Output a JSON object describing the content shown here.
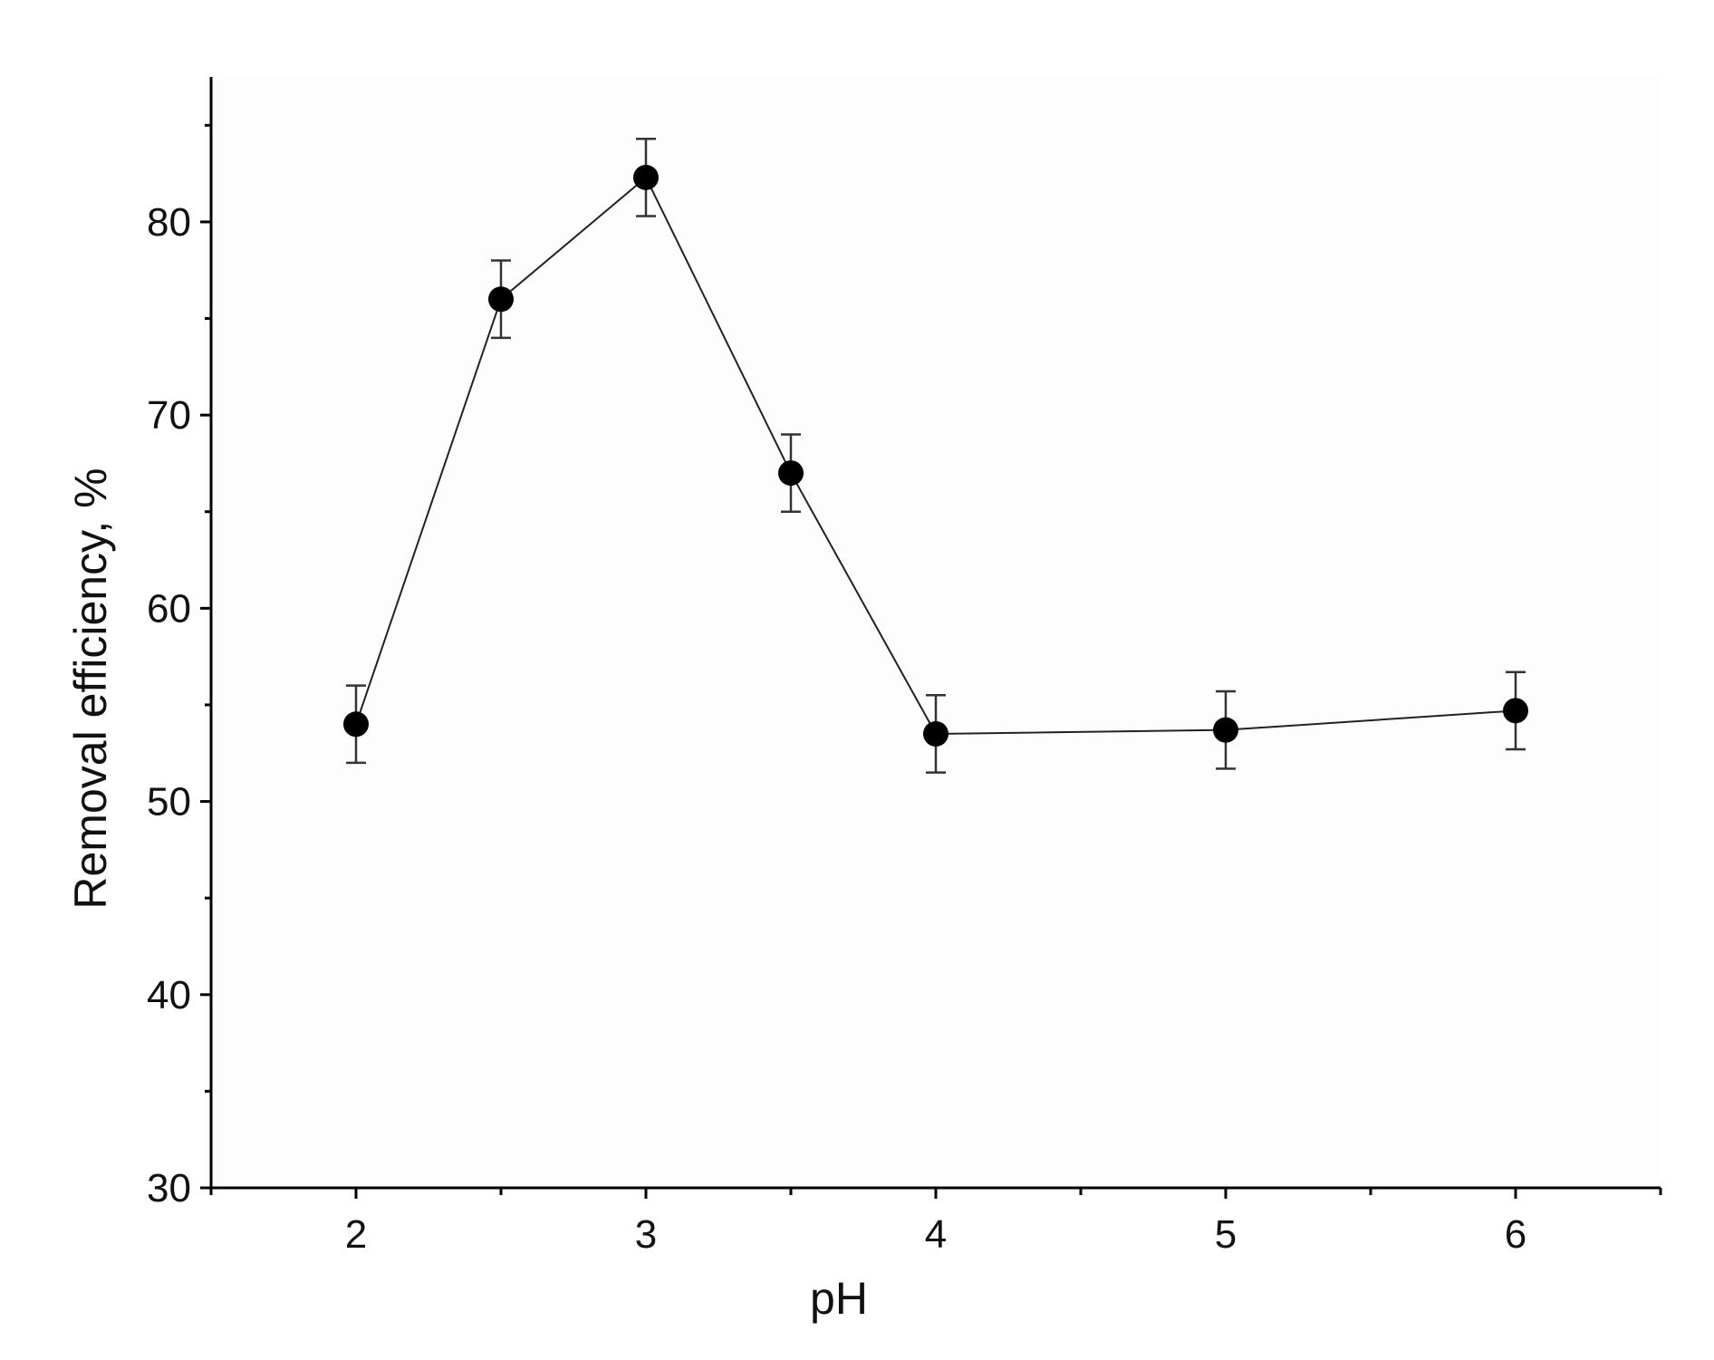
{
  "chart_data": {
    "type": "scatter",
    "title": "",
    "xlabel": "pH",
    "ylabel": "Removal efficiency, %",
    "xlim": [
      1.5,
      6.5
    ],
    "ylim": [
      30,
      87.5
    ],
    "grid": false,
    "legend": "none",
    "x_ticks": [
      2,
      3,
      4,
      5,
      6
    ],
    "x_tick_labels": [
      "2",
      "3",
      "4",
      "5",
      "6"
    ],
    "x_minor_ticks": [
      1.5,
      2.5,
      3.5,
      4.5,
      5.5,
      6.5
    ],
    "y_ticks": [
      30,
      40,
      50,
      60,
      70,
      80
    ],
    "y_tick_labels": [
      "30",
      "40",
      "50",
      "60",
      "70",
      "80"
    ],
    "y_minor_ticks": [
      35,
      45,
      55,
      65,
      75,
      85
    ],
    "series": [
      {
        "x": [
          2,
          2.5,
          3,
          3.5,
          4,
          5,
          6
        ],
        "y": [
          54.0,
          76.0,
          82.3,
          67.0,
          53.5,
          53.7,
          54.7
        ],
        "error": [
          2.0,
          2.0,
          2.0,
          2.0,
          2.0,
          2.0,
          2.0
        ],
        "connected": true,
        "marker": "circle",
        "color": "#000000"
      }
    ]
  }
}
